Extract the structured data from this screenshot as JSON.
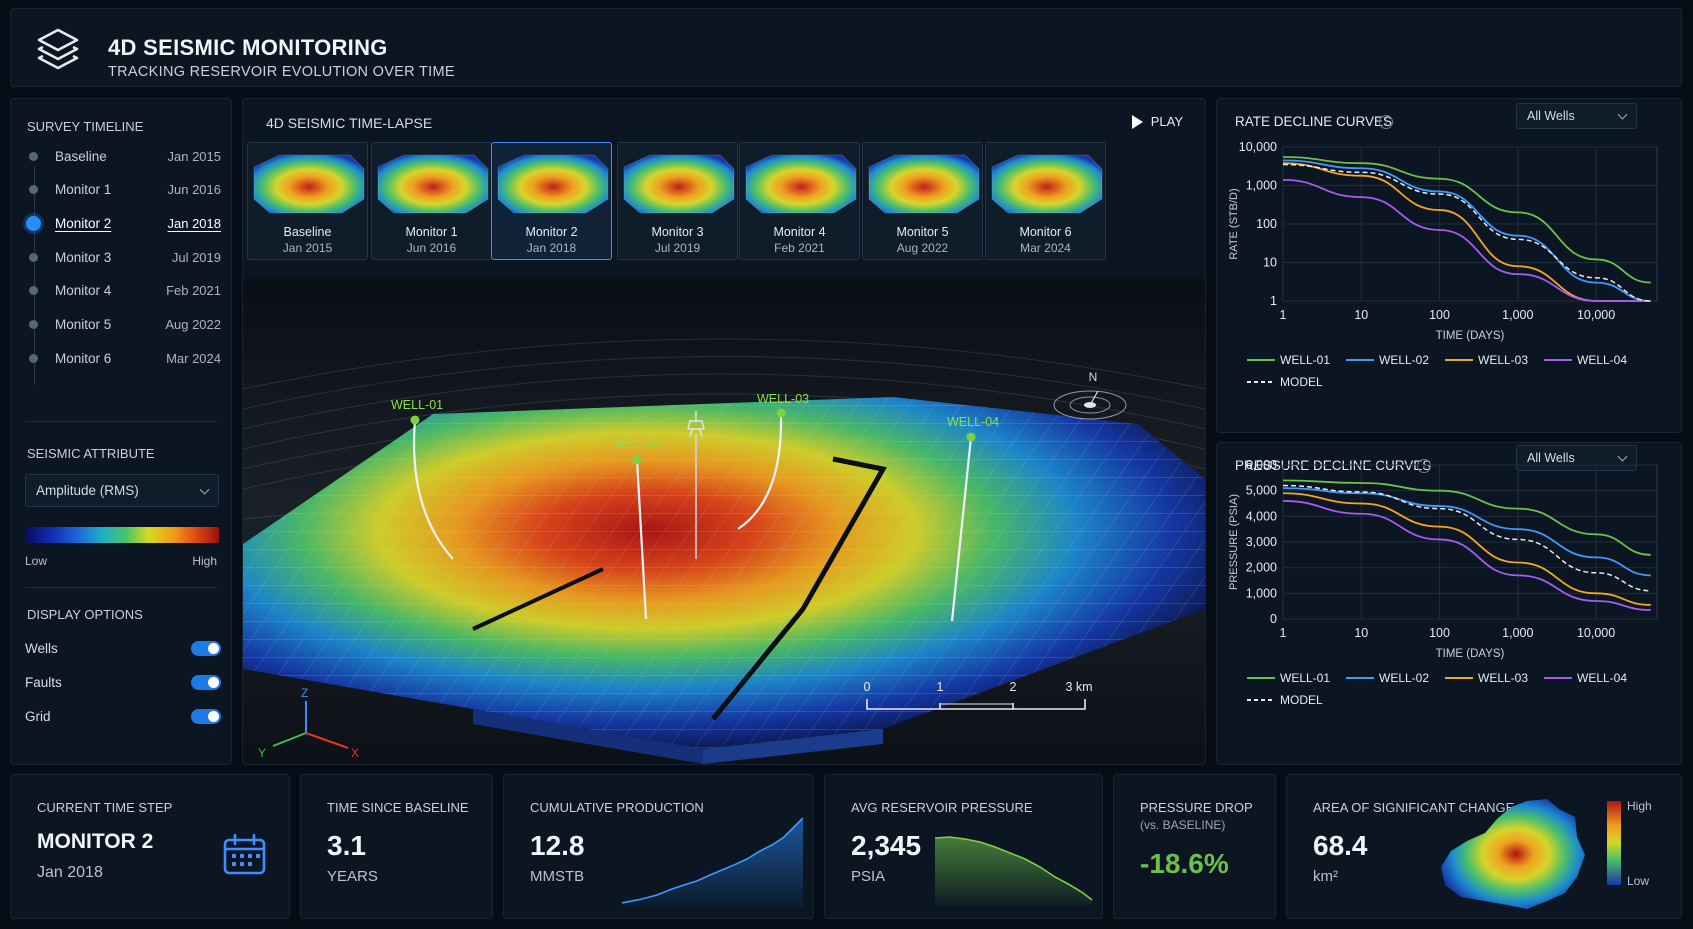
{
  "header": {
    "title": "4D SEISMIC MONITORING",
    "subtitle": "TRACKING RESERVOIR EVOLUTION OVER TIME"
  },
  "sidebar": {
    "timeline_title": "SURVEY TIMELINE",
    "timeline": [
      {
        "name": "Baseline",
        "date": "Jan 2015"
      },
      {
        "name": "Monitor 1",
        "date": "Jun 2016"
      },
      {
        "name": "Monitor 2",
        "date": "Jan 2018"
      },
      {
        "name": "Monitor 3",
        "date": "Jul 2019"
      },
      {
        "name": "Monitor 4",
        "date": "Feb 2021"
      },
      {
        "name": "Monitor 5",
        "date": "Aug 2022"
      },
      {
        "name": "Monitor 6",
        "date": "Mar 2024"
      }
    ],
    "active_index": 2,
    "attribute_title": "SEISMIC ATTRIBUTE",
    "attribute_value": "Amplitude (RMS)",
    "colorbar_low": "Low",
    "colorbar_high": "High",
    "display_title": "DISPLAY OPTIONS",
    "display_options": [
      {
        "label": "Wells",
        "on": true
      },
      {
        "label": "Faults",
        "on": true
      },
      {
        "label": "Grid",
        "on": true
      }
    ]
  },
  "center": {
    "title": "4D SEISMIC TIME-LAPSE",
    "play_label": "PLAY",
    "thumbnails": [
      {
        "name": "Baseline",
        "date": "Jan 2015"
      },
      {
        "name": "Monitor 1",
        "date": "Jun 2016"
      },
      {
        "name": "Monitor 2",
        "date": "Jan 2018"
      },
      {
        "name": "Monitor 3",
        "date": "Jul 2019"
      },
      {
        "name": "Monitor 4",
        "date": "Feb 2021"
      },
      {
        "name": "Monitor 5",
        "date": "Aug 2022"
      },
      {
        "name": "Monitor 6",
        "date": "Mar 2024"
      }
    ],
    "wells": [
      "WELL-01",
      "WELL-02",
      "WELL-03",
      "WELL-04"
    ],
    "compass": "N",
    "axes": {
      "x": "X",
      "y": "Y",
      "z": "Z"
    },
    "scale_labels": [
      "0",
      "1",
      "2",
      "3 km"
    ]
  },
  "rate_chart": {
    "title": "RATE DECLINE CURVES",
    "dropdown": "All Wells",
    "xlabel": "TIME (DAYS)",
    "ylabel": "RATE (STB/D)",
    "xticks": [
      "1",
      "10",
      "100",
      "1,000",
      "10,000"
    ],
    "yticks": [
      "10,000",
      "1,000",
      "100",
      "10",
      "1"
    ],
    "legend": [
      "WELL-01",
      "WELL-02",
      "WELL-03",
      "WELL-04",
      "MODEL"
    ]
  },
  "pressure_chart": {
    "title": "PRESSURE DECLINE CURVES",
    "dropdown": "All Wells",
    "xlabel": "TIME (DAYS)",
    "ylabel": "PRESSURE (PSIA)",
    "xticks": [
      "1",
      "10",
      "100",
      "1,000",
      "10,000"
    ],
    "yticks": [
      "6,000",
      "5,000",
      "4,000",
      "3,000",
      "2,000",
      "1,000",
      "0"
    ],
    "legend": [
      "WELL-01",
      "WELL-02",
      "WELL-03",
      "WELL-04",
      "MODEL"
    ]
  },
  "chart_data": [
    {
      "type": "line",
      "title": "RATE DECLINE CURVES",
      "xlabel": "TIME (DAYS)",
      "ylabel": "RATE (STB/D)",
      "x_scale": "log",
      "y_scale": "log",
      "xlim": [
        1,
        60000
      ],
      "ylim": [
        1,
        10000
      ],
      "x": [
        1,
        10,
        100,
        1000,
        10000,
        50000
      ],
      "series": [
        {
          "name": "WELL-01",
          "color": "#6cc04a",
          "values": [
            5500,
            3800,
            1500,
            200,
            12,
            3
          ]
        },
        {
          "name": "WELL-02",
          "color": "#3d9bff",
          "values": [
            4500,
            2800,
            700,
            50,
            3,
            1
          ]
        },
        {
          "name": "WELL-03",
          "color": "#f5a623",
          "values": [
            3800,
            1800,
            230,
            8,
            1,
            1
          ]
        },
        {
          "name": "WELL-04",
          "color": "#a45cf0",
          "values": [
            1400,
            500,
            70,
            5,
            1,
            1
          ]
        },
        {
          "name": "MODEL",
          "color": "#e6ebf0",
          "values": [
            3500,
            2200,
            600,
            40,
            4,
            1
          ]
        }
      ]
    },
    {
      "type": "line",
      "title": "PRESSURE DECLINE CURVES",
      "xlabel": "TIME (DAYS)",
      "ylabel": "PRESSURE (PSIA)",
      "x_scale": "log",
      "xlim": [
        1,
        60000
      ],
      "ylim": [
        0,
        6000
      ],
      "x": [
        1,
        10,
        100,
        1000,
        10000,
        50000
      ],
      "series": [
        {
          "name": "WELL-01",
          "color": "#6cc04a",
          "values": [
            5400,
            5300,
            5000,
            4300,
            3300,
            2500
          ]
        },
        {
          "name": "WELL-02",
          "color": "#3d9bff",
          "values": [
            5100,
            4900,
            4400,
            3500,
            2400,
            1700
          ]
        },
        {
          "name": "WELL-03",
          "color": "#f5a623",
          "values": [
            4900,
            4500,
            3600,
            2200,
            1000,
            550
          ]
        },
        {
          "name": "WELL-04",
          "color": "#a45cf0",
          "values": [
            4600,
            4100,
            3100,
            1700,
            700,
            350
          ]
        },
        {
          "name": "MODEL",
          "color": "#e6ebf0",
          "values": [
            5200,
            4950,
            4300,
            3100,
            1800,
            1100
          ]
        }
      ]
    }
  ],
  "kpis": {
    "time_step": {
      "title": "CURRENT TIME STEP",
      "value": "MONITOR 2",
      "unit": "Jan 2018"
    },
    "since_baseline": {
      "title": "TIME SINCE BASELINE",
      "value": "3.1",
      "unit": "YEARS"
    },
    "cum_prod": {
      "title": "CUMULATIVE PRODUCTION",
      "value": "12.8",
      "unit": "MMSTB"
    },
    "avg_pressure": {
      "title": "AVG RESERVOIR PRESSURE",
      "value": "2,345",
      "unit": "PSIA"
    },
    "pressure_drop": {
      "title": "PRESSURE DROP",
      "sub": "(vs. BASELINE)",
      "value": "-18.6%"
    },
    "area_change": {
      "title": "AREA OF SIGNIFICANT CHANGE",
      "value": "68.4",
      "unit": "km²",
      "legend_high": "High",
      "legend_low": "Low"
    }
  },
  "colors": {
    "accent": "#2b8cff",
    "positive_green": "#6cc04a",
    "background": "#060d16",
    "panel": "#0b1622"
  },
  "icons": [
    "layers-icon",
    "info-icon",
    "chevron-down-icon",
    "play-icon",
    "calendar-icon",
    "compass-icon"
  ]
}
